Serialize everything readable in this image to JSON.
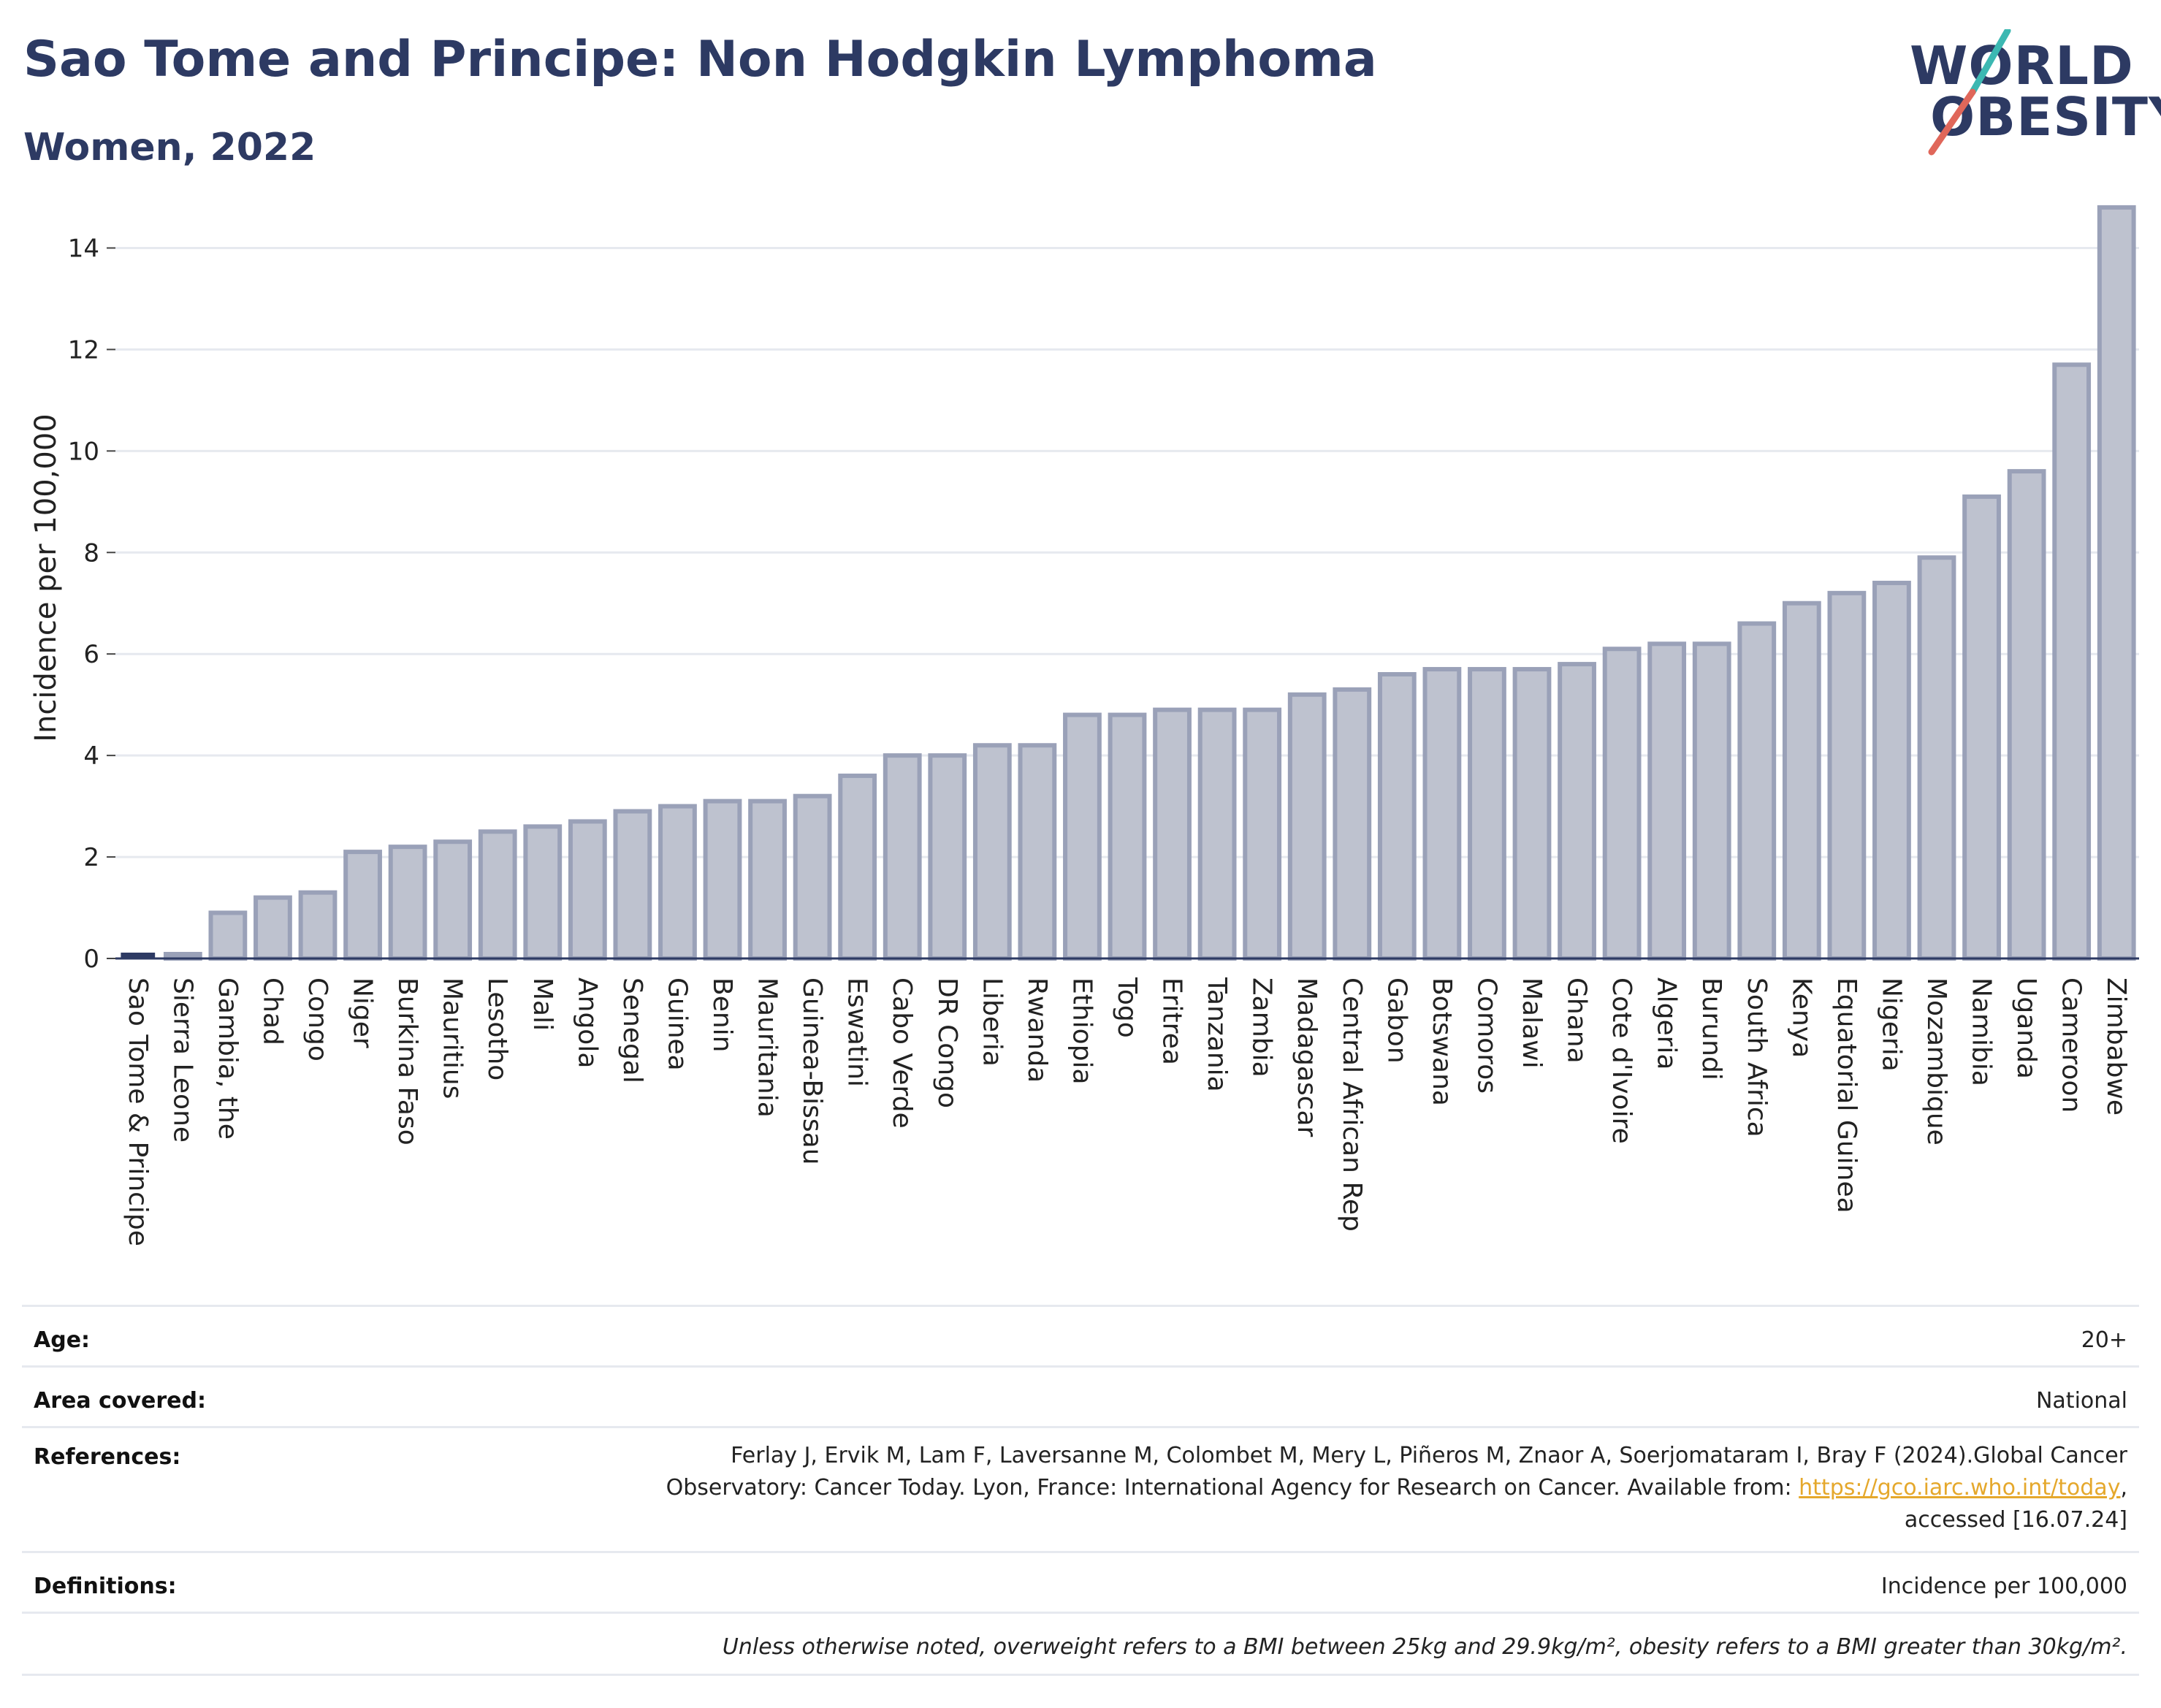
{
  "header": {
    "title": "Sao Tome and Principe: Non Hodgkin Lymphoma",
    "subtitle": "Women, 2022"
  },
  "logo": {
    "line1": "WORLD",
    "line2": "OBESITY",
    "colors": {
      "text": "#2d3a63",
      "slash_top": "#3cb8b2",
      "slash_bottom": "#e0675a"
    }
  },
  "colors": {
    "bar_fill": "#bec2cf",
    "bar_stroke": "#9aa1b8",
    "highlight_bar": "#2d3a63",
    "grid": "#e6e9ef",
    "axis_text": "#222222"
  },
  "chart_data": {
    "type": "bar",
    "ylabel": "Incidence per 100,000",
    "xlabel": "",
    "ylim": [
      0,
      15
    ],
    "yticks": [
      0,
      2,
      4,
      6,
      8,
      10,
      12,
      14
    ],
    "grid": true,
    "highlight": "Sao Tome & Principe",
    "categories": [
      "Sao Tome & Principe",
      "Sierra Leone",
      "Gambia, the",
      "Chad",
      "Congo",
      "Niger",
      "Burkina Faso",
      "Mauritius",
      "Lesotho",
      "Mali",
      "Angola",
      "Senegal",
      "Guinea",
      "Benin",
      "Mauritania",
      "Guinea-Bissau",
      "Eswatini",
      "Cabo Verde",
      "DR Congo",
      "Liberia",
      "Rwanda",
      "Ethiopia",
      "Togo",
      "Eritrea",
      "Tanzania",
      "Zambia",
      "Madagascar",
      "Central African Rep",
      "Gabon",
      "Botswana",
      "Comoros",
      "Malawi",
      "Ghana",
      "Cote d'Ivoire",
      "Algeria",
      "Burundi",
      "South Africa",
      "Kenya",
      "Equatorial Guinea",
      "Nigeria",
      "Mozambique",
      "Namibia",
      "Uganda",
      "Cameroon",
      "Zimbabwe"
    ],
    "values": [
      0.0,
      0.0,
      0.9,
      1.2,
      1.3,
      2.1,
      2.2,
      2.3,
      2.5,
      2.6,
      2.7,
      2.9,
      3.0,
      3.1,
      3.1,
      3.2,
      3.6,
      4.0,
      4.0,
      4.2,
      4.2,
      4.8,
      4.8,
      4.9,
      4.9,
      4.9,
      5.2,
      5.3,
      5.6,
      5.7,
      5.7,
      5.7,
      5.8,
      6.1,
      6.2,
      6.2,
      6.6,
      7.0,
      7.2,
      7.4,
      7.9,
      9.1,
      9.6,
      11.7,
      14.8
    ]
  },
  "footer": {
    "age_label": "Age:",
    "age_value": "20+",
    "area_label": "Area covered:",
    "area_value": "National",
    "references_label": "References:",
    "references_line1": "Ferlay J, Ervik M, Lam F, Laversanne M, Colombet M, Mery L, Piñeros M, Znaor A, Soerjomataram I, Bray F (2024).Global Cancer",
    "references_line2_pre": "Observatory: Cancer Today. Lyon, France: International Agency for Research on Cancer. Available from: ",
    "references_link": "https://gco.iarc.who.int/today",
    "references_line2_post": ",",
    "references_line3": "accessed [16.07.24]",
    "definitions_label": "Definitions:",
    "definitions_value": "Incidence per 100,000",
    "note": "Unless otherwise noted, overweight refers to a BMI between 25kg and 29.9kg/m², obesity refers to a BMI greater than 30kg/m²."
  }
}
